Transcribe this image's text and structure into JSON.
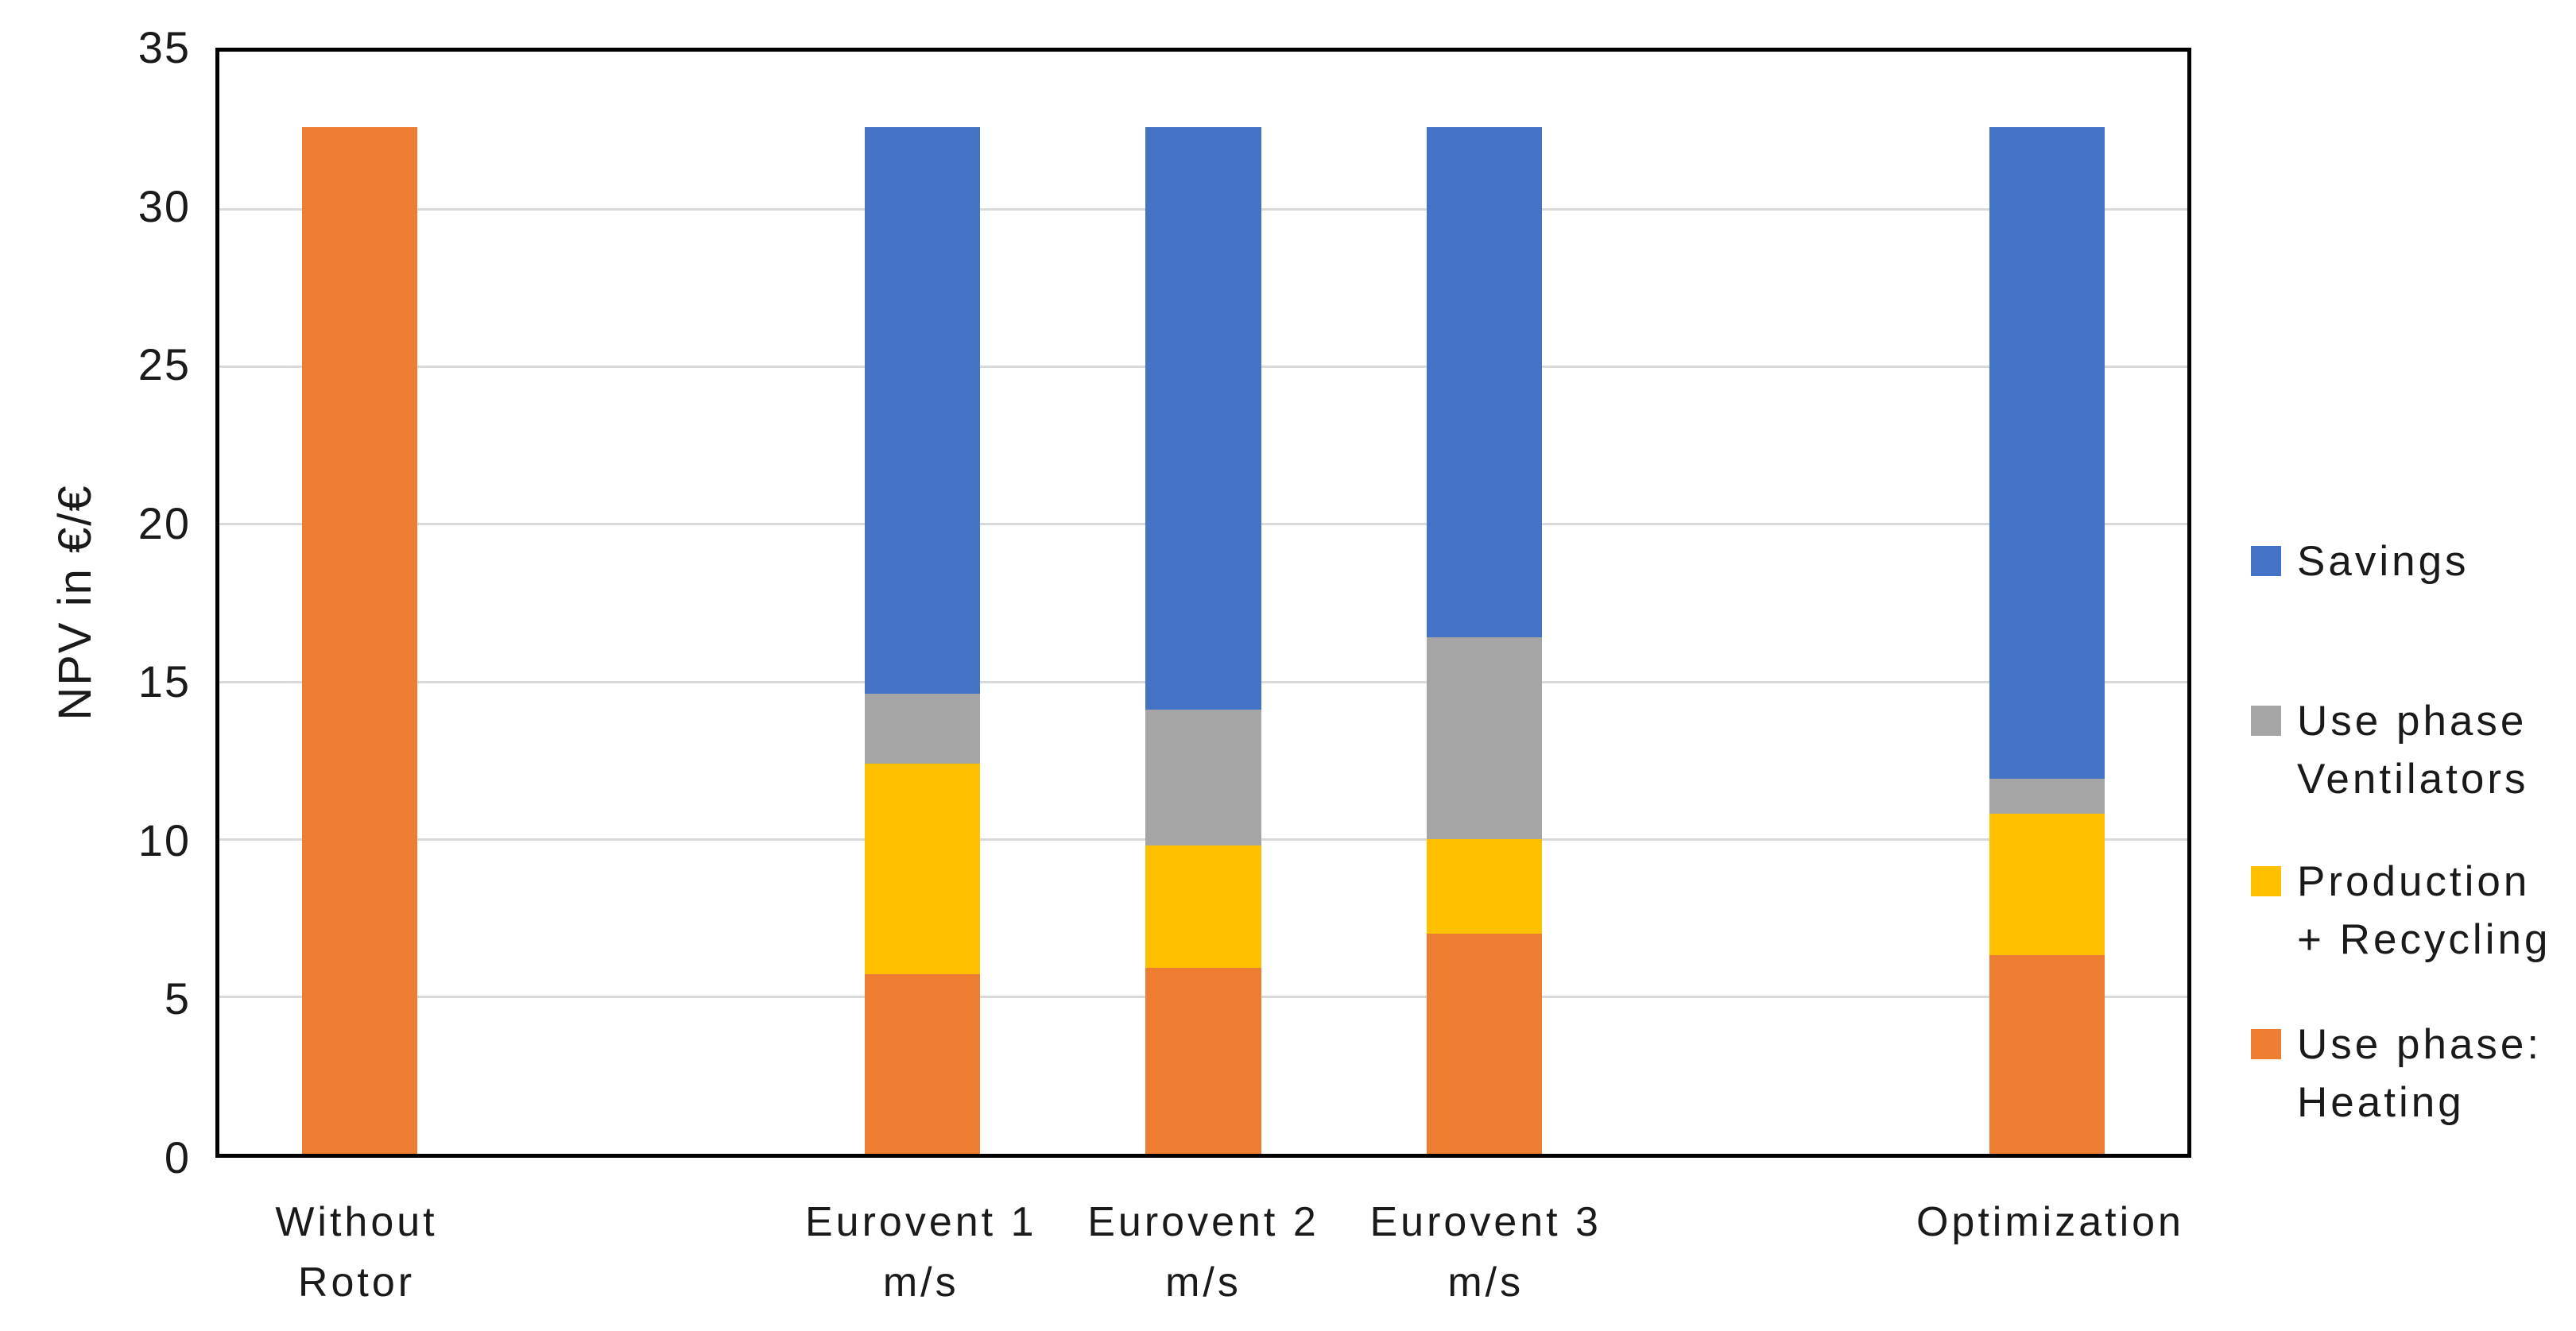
{
  "chart_data": {
    "type": "bar",
    "stacked": true,
    "title": "",
    "xlabel": "",
    "ylabel": "NPV in €/€",
    "ylim": [
      0,
      35
    ],
    "yticks": [
      0,
      5,
      10,
      15,
      20,
      25,
      30,
      35
    ],
    "gridlines": [
      5,
      10,
      15,
      20,
      25,
      30
    ],
    "grid": true,
    "legend_position": "right",
    "categories": [
      "Without Rotor",
      "Eurovent 1 m/s",
      "Eurovent 2 m/s",
      "Eurovent 3 m/s",
      "Optimization"
    ],
    "category_label_lines": [
      [
        "Without",
        "Rotor"
      ],
      [
        "Eurovent 1",
        "m/s"
      ],
      [
        "Eurovent 2",
        "m/s"
      ],
      [
        "Eurovent 3",
        "m/s"
      ],
      [
        "Optimization"
      ]
    ],
    "series": [
      {
        "name": "Use phase: Heating",
        "color": "#ED7D31",
        "values": [
          32.6,
          5.7,
          5.9,
          7.0,
          6.3
        ]
      },
      {
        "name": "Production + Recycling",
        "color": "#FFC000",
        "values": [
          0,
          6.7,
          3.9,
          3.0,
          4.5
        ]
      },
      {
        "name": "Use phase Ventilators",
        "color": "#A5A5A5",
        "values": [
          0,
          2.2,
          4.3,
          6.4,
          1.1
        ]
      },
      {
        "name": "Savings",
        "color": "#4472C4",
        "values": [
          0,
          18.0,
          18.5,
          16.2,
          20.7
        ]
      }
    ],
    "bar_totals": [
      32.6,
      32.6,
      32.6,
      32.6,
      32.6
    ],
    "legend": [
      {
        "lines": [
          "Savings"
        ],
        "color": "#4472C4"
      },
      {
        "lines": [
          "Use phase",
          "Ventilators"
        ],
        "color": "#A5A5A5"
      },
      {
        "lines": [
          "Production",
          "+ Recycling"
        ],
        "color": "#FFC000"
      },
      {
        "lines": [
          "Use phase:",
          "Heating"
        ],
        "color": "#ED7D31"
      }
    ],
    "layout_hints": {
      "bar_centers_pct": [
        7.14,
        35.71,
        50.0,
        64.29,
        92.86
      ],
      "bar_width_pct": 5.87,
      "axis_color": "#000000",
      "gridline_color": "#D9D9D9",
      "text_color": "#1A1A1A",
      "background_color": "#FFFFFF"
    }
  }
}
